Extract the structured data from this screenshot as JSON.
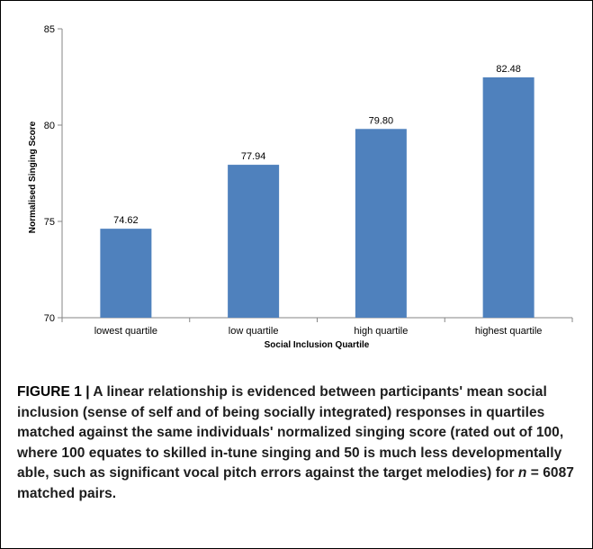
{
  "chart_data": {
    "type": "bar",
    "title": "",
    "xlabel": "Social Inclusion Quartile",
    "ylabel": "Normalised Singing Score",
    "categories": [
      "lowest quartile",
      "low quartile",
      "high quartile",
      "highest quartile"
    ],
    "values": [
      74.62,
      77.94,
      79.8,
      82.48
    ],
    "value_labels": [
      "74.62",
      "77.94",
      "79.80",
      "82.48"
    ],
    "ylim": [
      70,
      85
    ],
    "yticks": [
      70,
      75,
      80,
      85
    ],
    "grid": false,
    "legend": "none",
    "bar_color": "#4f81bd"
  },
  "caption": {
    "label": "FIGURE 1 | ",
    "text": "A linear relationship is evidenced between participants' mean social inclusion (sense of self and of being socially integrated) responses in quartiles matched against the same individuals' normalized singing score (rated out of 100, where 100 equates to skilled in-tune singing and 50 is much less developmentally able, such as significant vocal pitch errors against the target melodies) for ",
    "n_symbol": "n",
    "n_text": " = 6087 matched pairs."
  }
}
